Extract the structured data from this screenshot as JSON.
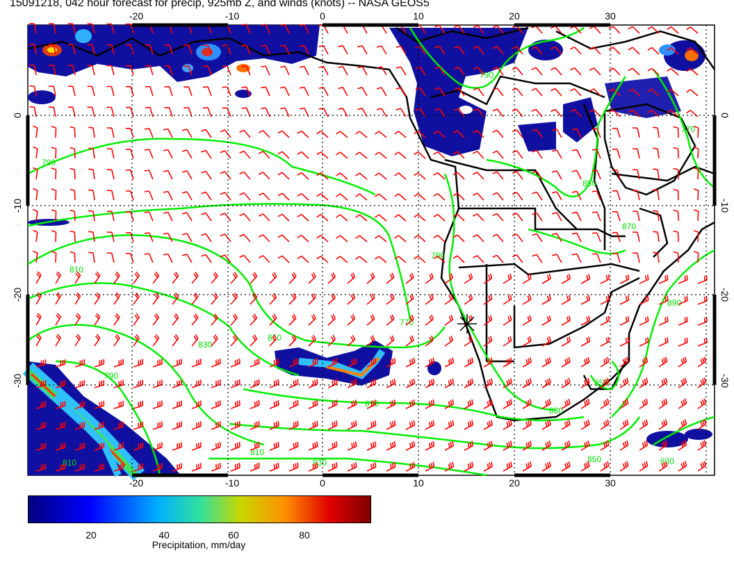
{
  "title": "15091218, 042 hour forecast for precip, 925mb Z, and winds (knots) -- NASA GEOS5",
  "map": {
    "lon_ticks": [
      "-20",
      "-10",
      "0",
      "10",
      "20",
      "30"
    ],
    "lat_ticks": [
      "0",
      "-10",
      "-20",
      "-30"
    ],
    "contour_labels": [
      "790",
      "810",
      "830",
      "850",
      "770",
      "790",
      "850",
      "870",
      "890",
      "810",
      "830",
      "850",
      "830",
      "810",
      "790",
      "770",
      "850",
      "830",
      "810",
      "790"
    ],
    "colors": {
      "wind": "#ff0000",
      "contour": "#00ee00",
      "coast": "#000000",
      "grid": "#000000"
    },
    "icons": [
      "wind-barb-icon",
      "star-marker-icon"
    ]
  },
  "colorbar": {
    "ticks": [
      "20",
      "40",
      "60",
      "80"
    ],
    "label": "Precipitation, mm/day"
  }
}
